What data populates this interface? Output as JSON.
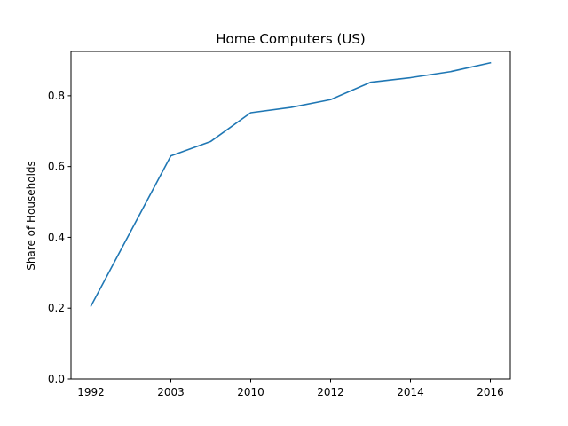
{
  "chart_data": {
    "type": "line",
    "title": "Home Computers (US)",
    "xlabel": "",
    "ylabel": "Share of Households",
    "x_tick_labels": [
      "1992",
      "2003",
      "2010",
      "2012",
      "2014",
      "2016"
    ],
    "x_tick_positions": [
      0,
      2,
      4,
      6,
      8,
      10
    ],
    "x_categories": [
      "1992",
      "",
      "2003",
      "",
      "2010",
      "",
      "2012",
      "",
      "2014",
      "",
      "2016"
    ],
    "ylim": [
      0.0,
      0.925
    ],
    "y_ticks": [
      0.0,
      0.2,
      0.4,
      0.6,
      0.8
    ],
    "y_tick_labels": [
      "0.0",
      "0.2",
      "0.4",
      "0.6",
      "0.8"
    ],
    "grid": false,
    "series": [
      {
        "color": "#1f77b4",
        "values": [
          0.206,
          0.418,
          0.63,
          0.671,
          0.752,
          0.767,
          0.789,
          0.838,
          0.851,
          0.868,
          0.893
        ]
      }
    ]
  }
}
